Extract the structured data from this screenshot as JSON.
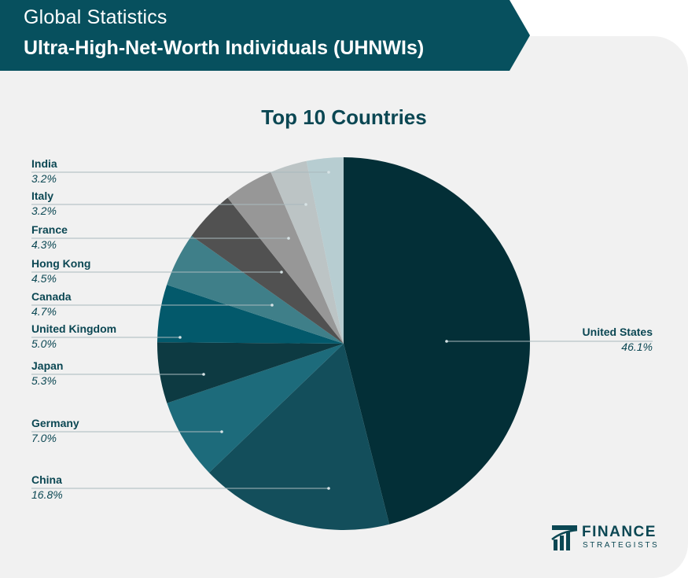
{
  "header": {
    "title": "Global Statistics",
    "subtitle": "Ultra-High-Net-Worth Individuals (UHNWIs)",
    "banner_color": "#07505e"
  },
  "chart_data": {
    "type": "pie",
    "title": "Top 10 Countries",
    "unit": "%",
    "slices": [
      {
        "label": "United States",
        "value": 46.1,
        "value_text": "46.1%",
        "color": "#032f37"
      },
      {
        "label": "China",
        "value": 16.8,
        "value_text": "16.8%",
        "color": "#134e5b"
      },
      {
        "label": "Germany",
        "value": 7.0,
        "value_text": "7.0%",
        "color": "#1d6b7b"
      },
      {
        "label": "Japan",
        "value": 5.3,
        "value_text": "5.3%",
        "color": "#0d3a42"
      },
      {
        "label": "United Kingdom",
        "value": 5.0,
        "value_text": "5.0%",
        "color": "#03596b"
      },
      {
        "label": "Canada",
        "value": 4.7,
        "value_text": "4.7%",
        "color": "#3f7f89"
      },
      {
        "label": "Hong Kong",
        "value": 4.5,
        "value_text": "4.5%",
        "color": "#515151"
      },
      {
        "label": "France",
        "value": 4.3,
        "value_text": "4.3%",
        "color": "#979797"
      },
      {
        "label": "Italy",
        "value": 3.2,
        "value_text": "3.2%",
        "color": "#bcc4c5"
      },
      {
        "label": "India",
        "value": 3.2,
        "value_text": "3.2%",
        "color": "#b7cdd1"
      }
    ]
  },
  "logo": {
    "line1": "FINANCE",
    "line2": "STRATEGISTS",
    "icon": "bar-chart-logo-icon"
  }
}
